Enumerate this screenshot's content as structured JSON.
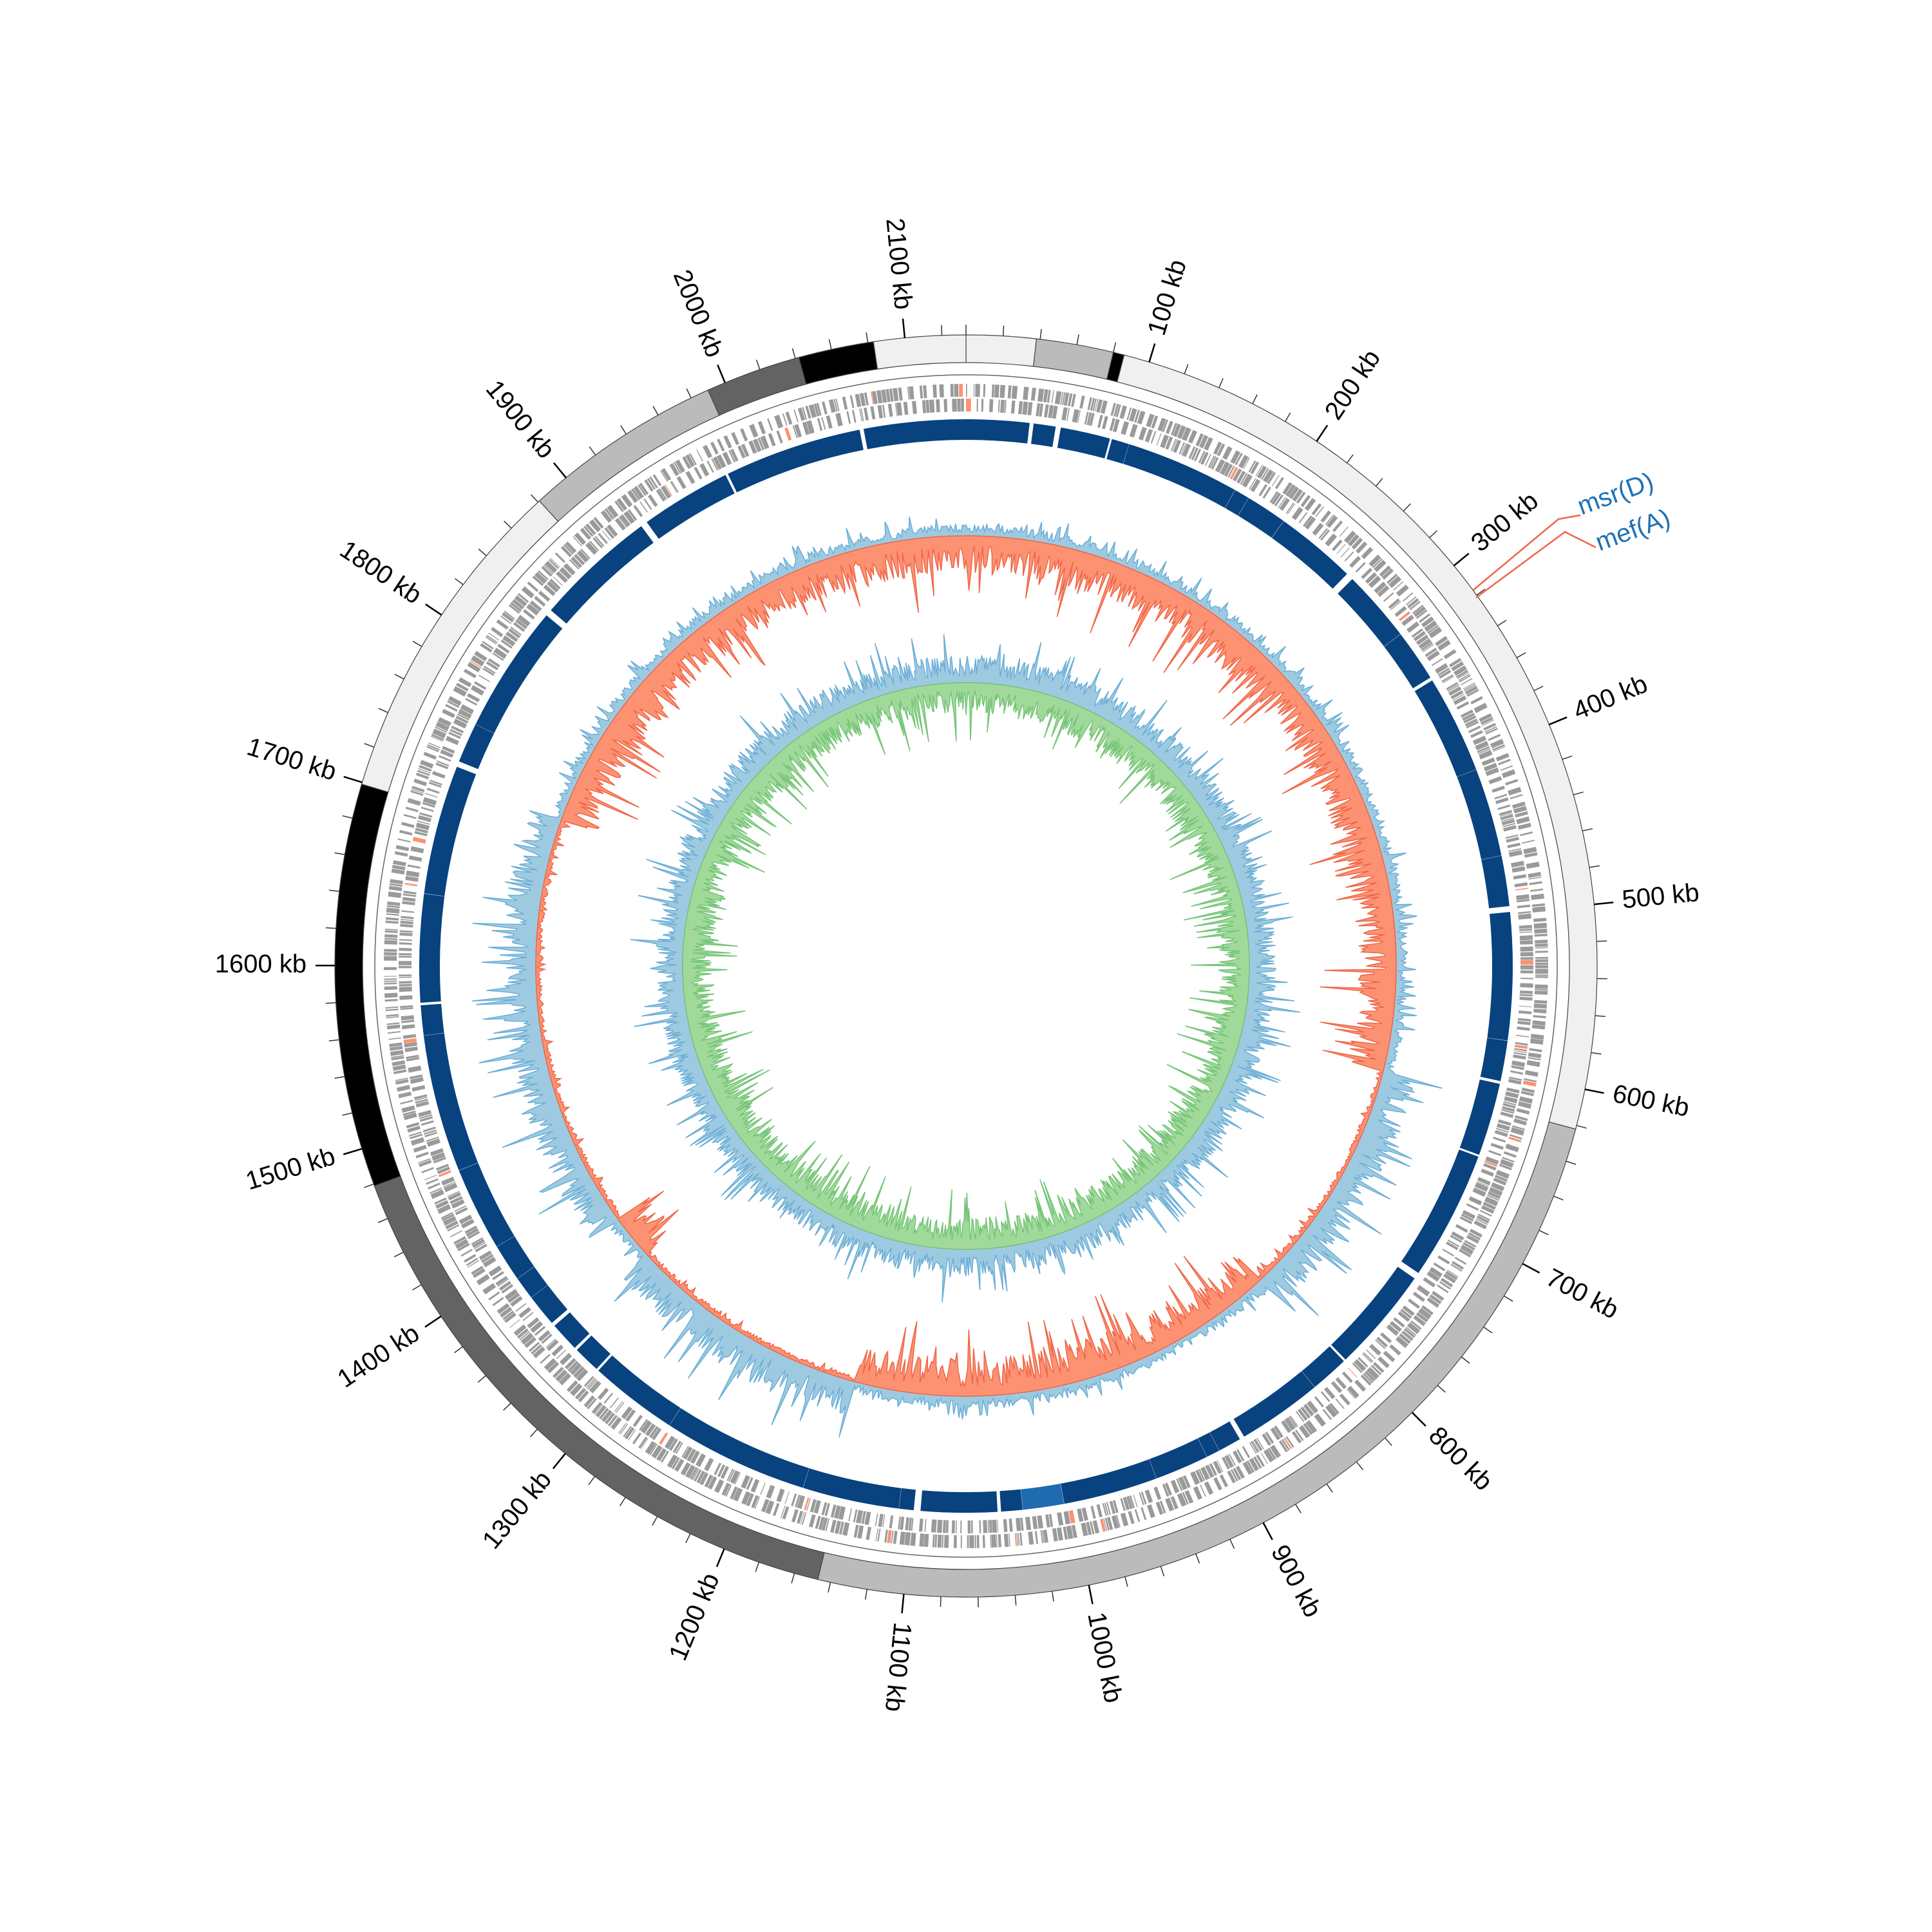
{
  "scale_kb": 2133,
  "ticks": [
    {
      "value": 100,
      "label": "100 kb"
    },
    {
      "value": 200,
      "label": "200 kb"
    },
    {
      "value": 300,
      "label": "300 kb"
    },
    {
      "value": 400,
      "label": "400 kb"
    },
    {
      "value": 500,
      "label": "500 kb"
    },
    {
      "value": 600,
      "label": "600 kb"
    },
    {
      "value": 700,
      "label": "700 kb"
    },
    {
      "value": 800,
      "label": "800 kb"
    },
    {
      "value": 900,
      "label": "900 kb"
    },
    {
      "value": 1000,
      "label": "1000 kb"
    },
    {
      "value": 1100,
      "label": "1100 kb"
    },
    {
      "value": 1200,
      "label": "1200 kb"
    },
    {
      "value": 1300,
      "label": "1300 kb"
    },
    {
      "value": 1400,
      "label": "1400 kb"
    },
    {
      "value": 1500,
      "label": "1500 kb"
    },
    {
      "value": 1600,
      "label": "1600 kb"
    },
    {
      "value": 1700,
      "label": "1700 kb"
    },
    {
      "value": 1800,
      "label": "1800 kb"
    },
    {
      "value": 1900,
      "label": "1900 kb"
    },
    {
      "value": 2000,
      "label": "2000 kb"
    },
    {
      "value": 2100,
      "label": "2100 kb"
    }
  ],
  "contigs": [
    {
      "start": 0,
      "end": 38,
      "color": "#f0f0f0"
    },
    {
      "start": 38,
      "end": 80,
      "color": "#bbbbbb"
    },
    {
      "start": 80,
      "end": 86,
      "color": "#000000"
    },
    {
      "start": 86,
      "end": 622,
      "color": "#f0f0f0"
    },
    {
      "start": 622,
      "end": 1147,
      "color": "#bbbbbb"
    },
    {
      "start": 1147,
      "end": 1479,
      "color": "#636363"
    },
    {
      "start": 1479,
      "end": 1699,
      "color": "#000000"
    },
    {
      "start": 1699,
      "end": 1881,
      "color": "#f0f0f0"
    },
    {
      "start": 1881,
      "end": 1990,
      "color": "#bbbbbb"
    },
    {
      "start": 1990,
      "end": 2042,
      "color": "#636363"
    },
    {
      "start": 2042,
      "end": 2083,
      "color": "#000000"
    },
    {
      "start": 2083,
      "end": 2133,
      "color": "#f0f0f0"
    }
  ],
  "genes": [
    {
      "label": "msr(D)"
    },
    {
      "label": "mef(A)"
    }
  ]
}
